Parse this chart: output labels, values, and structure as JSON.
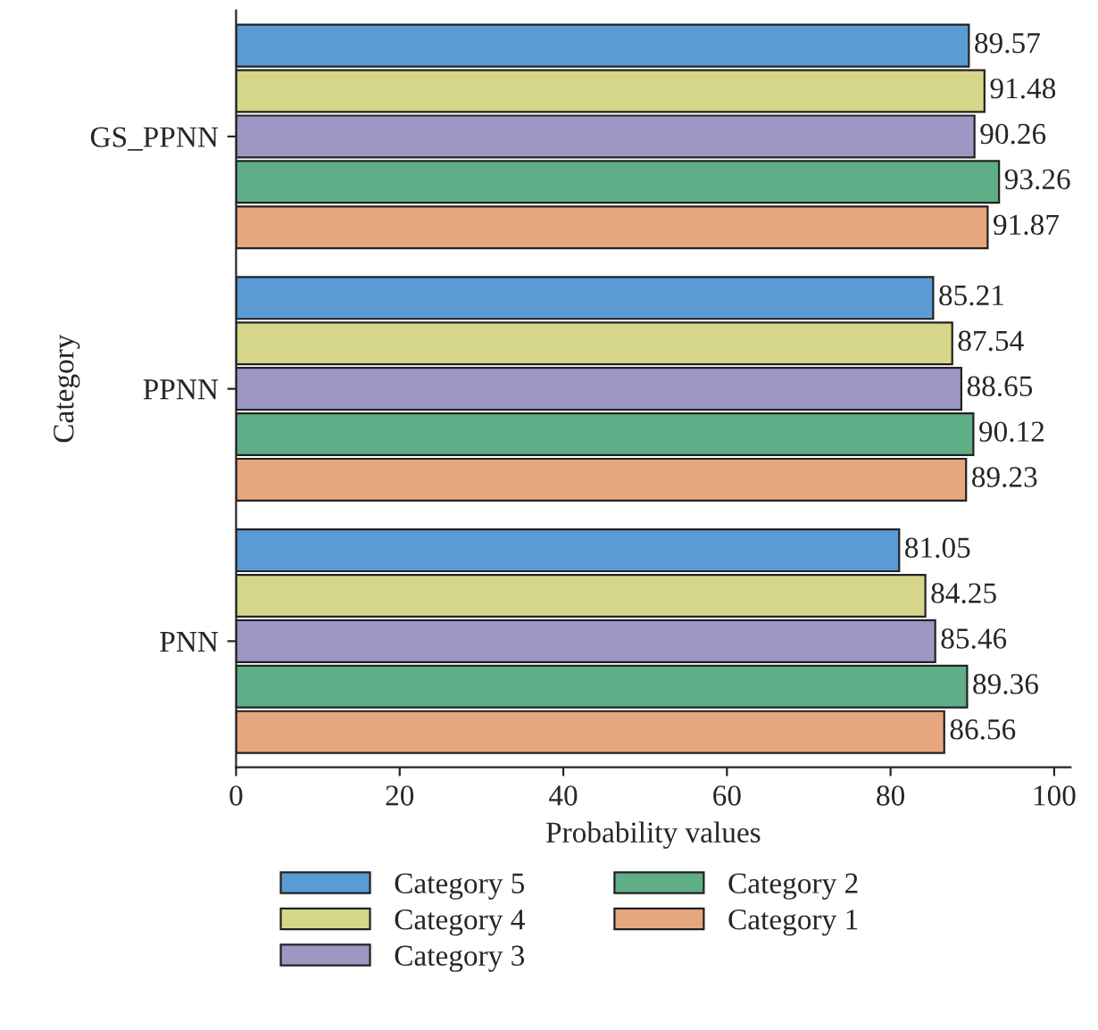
{
  "chart_data": {
    "type": "bar",
    "orientation": "horizontal",
    "xlabel": "Probability values",
    "ylabel": "Category",
    "categories": [
      "GS_PPNN",
      "PPNN",
      "PNN"
    ],
    "series": [
      {
        "name": "Category 5",
        "color": "#5b9bd5",
        "values": [
          89.57,
          85.21,
          81.05
        ]
      },
      {
        "name": "Category 4",
        "color": "#d6d68a",
        "values": [
          91.48,
          87.54,
          84.25
        ]
      },
      {
        "name": "Category 3",
        "color": "#9d97c4",
        "values": [
          90.26,
          88.65,
          85.46
        ]
      },
      {
        "name": "Category 2",
        "color": "#5fae88",
        "values": [
          93.26,
          90.12,
          89.36
        ]
      },
      {
        "name": "Category 1",
        "color": "#e6a77f",
        "values": [
          91.87,
          89.23,
          86.56
        ]
      }
    ],
    "xlim": [
      0,
      102
    ],
    "xticks": [
      0,
      20,
      40,
      60,
      80,
      100
    ],
    "data_labels": true,
    "grid": false,
    "legend": "bottom"
  }
}
